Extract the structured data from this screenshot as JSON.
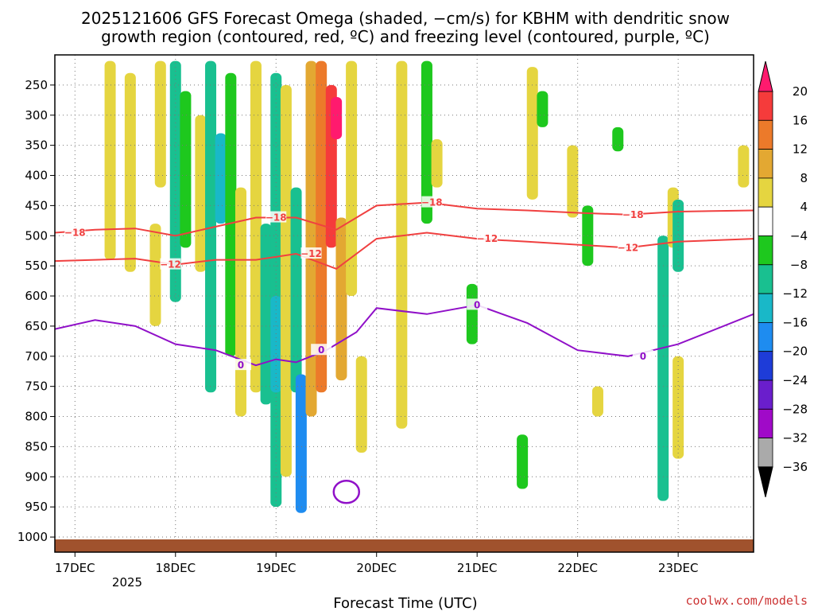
{
  "chart_data": {
    "type": "heatmap",
    "title_line1": "2025121606 GFS Forecast Omega (shaded, −cm/s) for KBHM with dendritic snow",
    "title_line2": "growth region (contoured, red, ºC) and freezing level (contoured, purple, ºC)",
    "xlabel": "Forecast Time (UTC)",
    "credit": "coolwx.com/models",
    "x_ticks": [
      "17DEC",
      "18DEC",
      "19DEC",
      "20DEC",
      "21DEC",
      "22DEC",
      "23DEC"
    ],
    "x_tick_days": [
      1,
      2,
      3,
      4,
      5,
      6,
      7
    ],
    "x_year_label": "2025",
    "xlim_days": [
      0.8,
      7.75
    ],
    "y_ticks": [
      250,
      300,
      350,
      400,
      450,
      500,
      550,
      600,
      650,
      700,
      750,
      800,
      850,
      900,
      950,
      1000
    ],
    "ylim_hpa": [
      200,
      1025
    ],
    "colorbar": {
      "labels": [
        "20",
        "16",
        "12",
        "8",
        "4",
        "−4",
        "−8",
        "−12",
        "−16",
        "−20",
        "−24",
        "−28",
        "−32",
        "−36"
      ],
      "colors": [
        "#ff1a6e",
        "#f53b3b",
        "#ec7a2a",
        "#e3a832",
        "#e5d540",
        "#ffffff",
        "#1ec81e",
        "#19c090",
        "#19b8c8",
        "#1e8cf0",
        "#1e3cd8",
        "#6a1ecc",
        "#a00ac8",
        "#aaaaaa",
        "#000000"
      ]
    },
    "shaded_omega": [
      {
        "day": 1.35,
        "p0": 210,
        "p1": 540,
        "v": 6
      },
      {
        "day": 1.55,
        "p0": 230,
        "p1": 560,
        "v": 5
      },
      {
        "day": 1.85,
        "p0": 210,
        "p1": 420,
        "v": 4
      },
      {
        "day": 1.8,
        "p0": 480,
        "p1": 650,
        "v": 4
      },
      {
        "day": 2.0,
        "p0": 210,
        "p1": 610,
        "v": -8
      },
      {
        "day": 2.1,
        "p0": 260,
        "p1": 520,
        "v": -6
      },
      {
        "day": 2.25,
        "p0": 300,
        "p1": 560,
        "v": 5
      },
      {
        "day": 2.35,
        "p0": 210,
        "p1": 760,
        "v": -10
      },
      {
        "day": 2.45,
        "p0": 330,
        "p1": 480,
        "v": -14
      },
      {
        "day": 2.55,
        "p0": 230,
        "p1": 700,
        "v": -7
      },
      {
        "day": 2.65,
        "p0": 420,
        "p1": 800,
        "v": 5
      },
      {
        "day": 2.8,
        "p0": 210,
        "p1": 760,
        "v": 6
      },
      {
        "day": 2.9,
        "p0": 480,
        "p1": 780,
        "v": -10
      },
      {
        "day": 3.0,
        "p0": 230,
        "p1": 950,
        "v": -9
      },
      {
        "day": 3.0,
        "p0": 600,
        "p1": 760,
        "v": -14
      },
      {
        "day": 3.1,
        "p0": 250,
        "p1": 900,
        "v": 7
      },
      {
        "day": 3.2,
        "p0": 420,
        "p1": 760,
        "v": -8
      },
      {
        "day": 3.25,
        "p0": 730,
        "p1": 960,
        "v": -18
      },
      {
        "day": 3.35,
        "p0": 210,
        "p1": 800,
        "v": 8
      },
      {
        "day": 3.45,
        "p0": 210,
        "p1": 760,
        "v": 12
      },
      {
        "day": 3.55,
        "p0": 250,
        "p1": 520,
        "v": 16
      },
      {
        "day": 3.6,
        "p0": 270,
        "p1": 340,
        "v": 20
      },
      {
        "day": 3.65,
        "p0": 470,
        "p1": 740,
        "v": 10
      },
      {
        "day": 3.75,
        "p0": 210,
        "p1": 600,
        "v": 6
      },
      {
        "day": 3.85,
        "p0": 700,
        "p1": 860,
        "v": 5
      },
      {
        "day": 4.25,
        "p0": 210,
        "p1": 820,
        "v": 4
      },
      {
        "day": 4.5,
        "p0": 210,
        "p1": 480,
        "v": -6
      },
      {
        "day": 4.6,
        "p0": 340,
        "p1": 420,
        "v": 5
      },
      {
        "day": 4.95,
        "p0": 580,
        "p1": 680,
        "v": -6
      },
      {
        "day": 5.45,
        "p0": 830,
        "p1": 920,
        "v": -7
      },
      {
        "day": 5.55,
        "p0": 220,
        "p1": 440,
        "v": 5
      },
      {
        "day": 5.65,
        "p0": 260,
        "p1": 320,
        "v": -6
      },
      {
        "day": 5.95,
        "p0": 350,
        "p1": 470,
        "v": 4
      },
      {
        "day": 6.1,
        "p0": 450,
        "p1": 550,
        "v": -7
      },
      {
        "day": 6.2,
        "p0": 750,
        "p1": 800,
        "v": 5
      },
      {
        "day": 6.4,
        "p0": 320,
        "p1": 360,
        "v": -7
      },
      {
        "day": 6.85,
        "p0": 500,
        "p1": 940,
        "v": -10
      },
      {
        "day": 6.95,
        "p0": 420,
        "p1": 520,
        "v": 5
      },
      {
        "day": 7.0,
        "p0": 440,
        "p1": 560,
        "v": -8
      },
      {
        "day": 7.0,
        "p0": 700,
        "p1": 870,
        "v": 5
      },
      {
        "day": 7.65,
        "p0": 350,
        "p1": 420,
        "v": 4
      }
    ],
    "contour_minus18": {
      "label": "−18",
      "color": "#f04040",
      "days": [
        0.8,
        1.2,
        1.6,
        2.0,
        2.4,
        2.8,
        3.2,
        3.6,
        4.0,
        4.5,
        5.0,
        5.5,
        6.0,
        6.5,
        7.0,
        7.75
      ],
      "hpa": [
        495,
        490,
        488,
        500,
        485,
        470,
        470,
        490,
        450,
        445,
        455,
        458,
        462,
        465,
        460,
        458
      ]
    },
    "contour_minus12": {
      "label": "−12",
      "color": "#f04040",
      "days": [
        0.8,
        1.2,
        1.6,
        2.0,
        2.4,
        2.8,
        3.2,
        3.6,
        4.0,
        4.5,
        5.0,
        5.5,
        6.0,
        6.5,
        7.0,
        7.75
      ],
      "hpa": [
        542,
        540,
        538,
        548,
        540,
        540,
        530,
        555,
        505,
        495,
        505,
        510,
        515,
        520,
        510,
        505
      ]
    },
    "contour_0": {
      "label": "0",
      "color": "#9010c8",
      "days": [
        0.8,
        1.2,
        1.6,
        2.0,
        2.4,
        2.8,
        3.0,
        3.2,
        3.5,
        3.8,
        4.0,
        4.5,
        5.0,
        5.5,
        6.0,
        6.5,
        7.0,
        7.75
      ],
      "hpa": [
        655,
        640,
        650,
        680,
        690,
        715,
        705,
        710,
        690,
        660,
        620,
        630,
        615,
        645,
        690,
        700,
        680,
        630
      ]
    },
    "contour_0_loop": {
      "center_day": 3.7,
      "center_hpa": 925
    }
  }
}
